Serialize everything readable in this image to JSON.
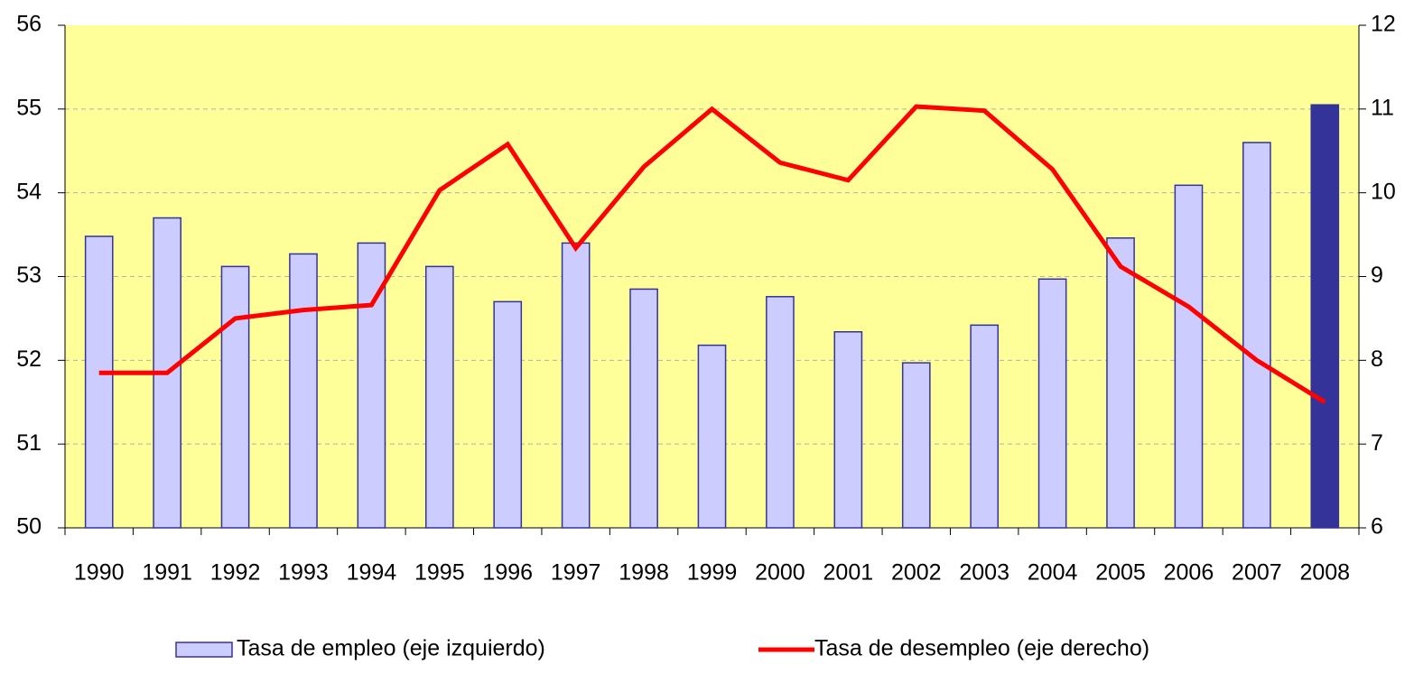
{
  "chart_data": {
    "type": "bar_line",
    "categories": [
      "1990",
      "1991",
      "1992",
      "1993",
      "1994",
      "1995",
      "1996",
      "1997",
      "1998",
      "1999",
      "2000",
      "2001",
      "2002",
      "2003",
      "2004",
      "2005",
      "2006",
      "2007",
      "2008"
    ],
    "series": [
      {
        "name": "Tasa de empleo (eje izquierdo)",
        "type": "bar",
        "axis": "y",
        "color": "#ccccff",
        "stroke": "#333399",
        "colors": [
          "#ccccff",
          "#ccccff",
          "#ccccff",
          "#ccccff",
          "#ccccff",
          "#ccccff",
          "#ccccff",
          "#ccccff",
          "#ccccff",
          "#ccccff",
          "#ccccff",
          "#ccccff",
          "#ccccff",
          "#ccccff",
          "#ccccff",
          "#ccccff",
          "#ccccff",
          "#ccccff",
          "#333399"
        ],
        "values": [
          53.48,
          53.7,
          53.12,
          53.27,
          53.4,
          53.12,
          52.7,
          53.4,
          52.85,
          52.18,
          52.76,
          52.34,
          51.97,
          52.42,
          52.97,
          53.46,
          54.09,
          54.6,
          55.05
        ]
      },
      {
        "name": "Tasa de desempleo (eje derecho)",
        "type": "line",
        "axis": "y2",
        "color": "#ff0000",
        "values": [
          7.85,
          7.85,
          8.5,
          8.6,
          8.66,
          10.03,
          10.58,
          9.34,
          10.31,
          11.0,
          10.36,
          10.15,
          11.03,
          10.98,
          10.28,
          9.12,
          8.64,
          8.0,
          7.5
        ]
      }
    ],
    "ylim": [
      50,
      56
    ],
    "yticks": [
      50,
      51,
      52,
      53,
      54,
      55,
      56
    ],
    "y2lim": [
      6,
      12
    ],
    "y2ticks": [
      6,
      7,
      8,
      9,
      10,
      11,
      12
    ],
    "grid": true,
    "plot_background": "#ffff99",
    "legend": "bottom"
  }
}
